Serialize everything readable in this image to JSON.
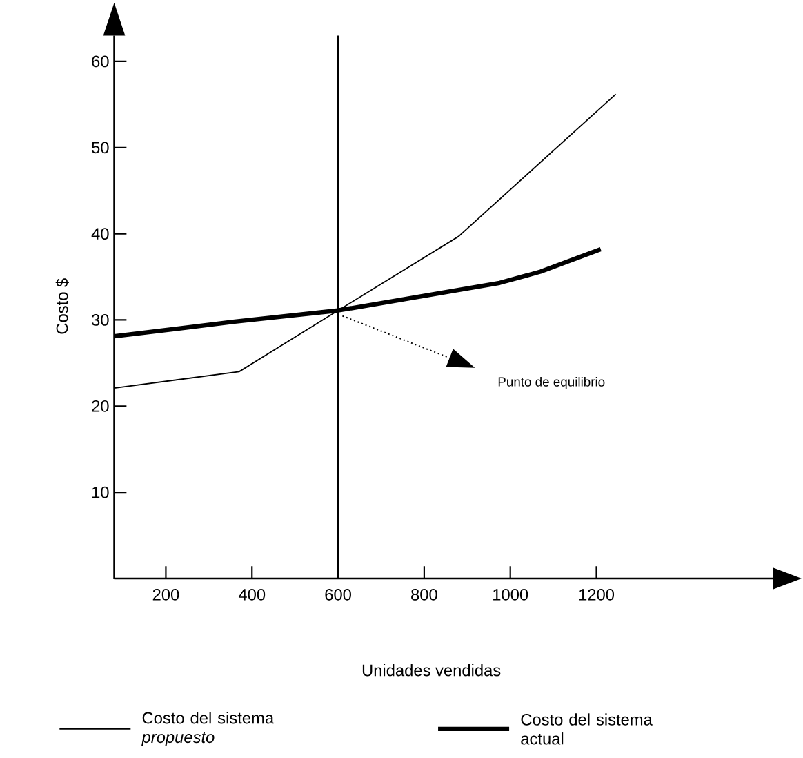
{
  "chart_data": {
    "type": "line",
    "xlabel": "Unidades vendidas",
    "ylabel": "Costo $",
    "xlim": [
      80,
      1610
    ],
    "ylim": [
      0,
      63
    ],
    "xticks": [
      200,
      400,
      600,
      800,
      1000,
      1200
    ],
    "yticks": [
      10,
      20,
      30,
      40,
      50,
      60
    ],
    "marker": "none",
    "legend": "bottom",
    "series": [
      {
        "name": "Costo del sistema *propuesto*",
        "color": "#000000",
        "x": [
          80,
          370,
          600,
          880,
          1245
        ],
        "values": [
          22.1,
          24,
          31.1,
          39.7,
          56.2
        ]
      },
      {
        "name": "Costo del sistema actual",
        "color": "#000000",
        "x": [
          80,
          360,
          600,
          975,
          1070,
          1210
        ],
        "values": [
          28.1,
          29.8,
          31.1,
          34.3,
          35.6,
          38.2
        ]
      }
    ],
    "ref_lines": [
      {
        "axis": "x",
        "value": 600
      }
    ],
    "annotations": [
      "Punto de equilibrio"
    ]
  }
}
